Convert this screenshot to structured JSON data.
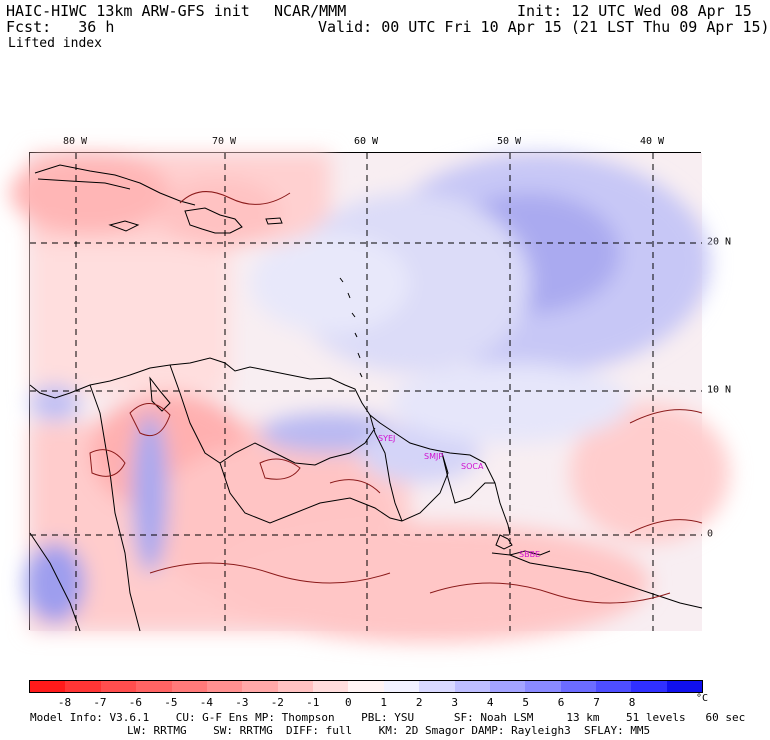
{
  "header": {
    "model_title": "HAIC-HIWC 13km ARW-GFS init",
    "org": "NCAR/MMM",
    "init": "Init: 12 UTC Wed 08 Apr 15",
    "fcst": "Fcst:   36 h",
    "valid": "Valid: 00 UTC Fri 10 Apr 15 (21 LST Thu 09 Apr 15)",
    "field": "Lifted index"
  },
  "map": {
    "lon_labels": [
      "80 W",
      "70 W",
      "60 W",
      "50 W",
      "40 W"
    ],
    "lat_labels": [
      "20 N",
      "10 N",
      "0"
    ],
    "stations": [
      "SYEJ",
      "SMJP",
      "SOCA",
      "SBBE"
    ]
  },
  "colorbar": {
    "ticks": [
      "-8",
      "-7",
      "-6",
      "-5",
      "-4",
      "-3",
      "-2",
      "-1",
      "0",
      "1",
      "2",
      "3",
      "4",
      "5",
      "6",
      "7",
      "8"
    ],
    "unit": "°C",
    "colors": [
      "#ff1a1a",
      "#ff3535",
      "#ff4e4e",
      "#ff6464",
      "#ff7a7a",
      "#ff9191",
      "#ffa8a8",
      "#ffc2c2",
      "#ffdddd",
      "#fff4f4",
      "#f2f2ff",
      "#d9d9ff",
      "#bebeff",
      "#a4a4ff",
      "#8a8aff",
      "#6c6cff",
      "#4e4eff",
      "#3030ff",
      "#1010ee"
    ]
  },
  "footer": {
    "line1": "Model Info: V3.6.1    CU: G-F Ens MP: Thompson    PBL: YSU      SF: Noah LSM     13 km    51 levels   60 sec",
    "line2": "LW: RRTMG    SW: RRTMG  DIFF: full    KM: 2D Smagor DAMP: Rayleigh3  SFLAY: MM5"
  }
}
